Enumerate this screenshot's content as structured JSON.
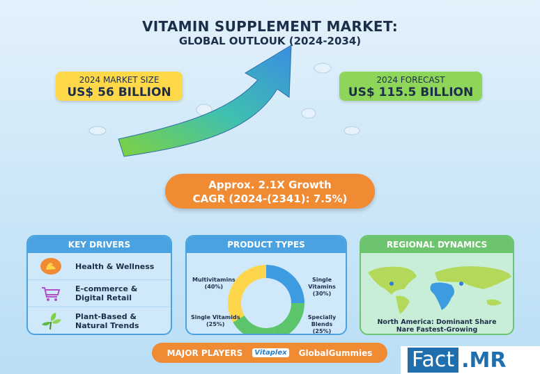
{
  "header": {
    "title": "VITAMIN SUPPLEMENT MARKET:",
    "subtitle": "GLOBAL OUTLOUK (2024-2034)"
  },
  "market_size": {
    "label": "2024 MARKET SIZE",
    "value": "US$ 56 BILLION",
    "color": "#ffd84a"
  },
  "forecast": {
    "label": "2024 FORECAST",
    "value": "US$ 115.5 BILLION",
    "color": "#8ed65a"
  },
  "growth": {
    "line1": "Approx. 2.1X Growth",
    "line2": "CAGR (2024-(2341): 7.5%)",
    "color": "#f08a33"
  },
  "key_drivers": {
    "title": "KEY DRIVERS",
    "items": [
      {
        "label": "Health & Wellness",
        "icon": "flexed-arm-icon"
      },
      {
        "label": "E-commerce & Digital Retail",
        "icon": "shopping-cart-icon"
      },
      {
        "label": "Plant-Based & Natural Trends",
        "icon": "leaf-icon"
      }
    ]
  },
  "product_types": {
    "title": "PRODUCT TYPES",
    "chart_data": {
      "type": "pie",
      "segments": [
        {
          "label": "Single Vitamins",
          "pct_label": "(30%)",
          "value": 30,
          "color": "#3d9be0"
        },
        {
          "label": "Specially Blends",
          "pct_label": "(25%)",
          "value": 25,
          "color": "#5cc46a"
        },
        {
          "label": "Single Vitamids",
          "pct_label": "(25%)",
          "value": 25,
          "color": "#5cc46a"
        },
        {
          "label": "Multivitamins",
          "pct_label": "(40%)",
          "value": 40,
          "color": "#fdd64b"
        }
      ]
    }
  },
  "regional": {
    "title": "REGIONAL DYNAMICS",
    "line1": "North America: Dominant Share",
    "line2": "Nare Fastest-Growing",
    "color": "#6cc46e"
  },
  "players": {
    "label": "MAJOR PLAYERS",
    "items": [
      "Vitaplex",
      "GlobalGummies"
    ]
  },
  "logo": {
    "part1": "Fact",
    "part2": ".MR"
  }
}
